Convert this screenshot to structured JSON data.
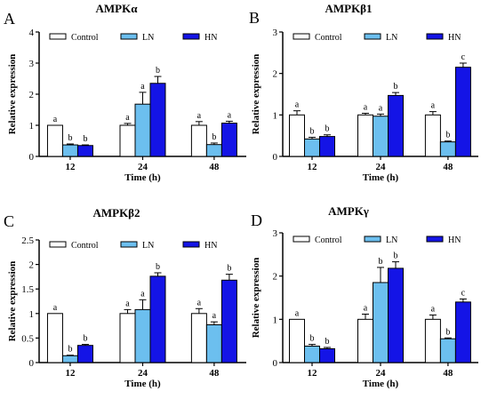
{
  "legend": [
    {
      "name": "Control",
      "color": "#ffffff"
    },
    {
      "name": "LN",
      "color": "#6cbfef"
    },
    {
      "name": "HN",
      "color": "#1414e6"
    }
  ],
  "chart_data": [
    {
      "type": "bar",
      "panel": "A",
      "title": "AMPKα",
      "xlabel": "Time (h)",
      "ylabel": "Relative expression",
      "categories": [
        "12",
        "24",
        "48"
      ],
      "ylim": [
        0,
        4
      ],
      "yticks": [
        0,
        1,
        2,
        3,
        4
      ],
      "series": [
        {
          "name": "Control",
          "values": [
            1.0,
            1.0,
            1.0
          ],
          "errors": [
            0.0,
            0.06,
            0.12
          ],
          "letters": [
            "a",
            "a",
            "a"
          ]
        },
        {
          "name": "LN",
          "values": [
            0.37,
            1.68,
            0.38
          ],
          "errors": [
            0.03,
            0.38,
            0.05
          ],
          "letters": [
            "b",
            "a",
            "b"
          ]
        },
        {
          "name": "HN",
          "values": [
            0.35,
            2.35,
            1.07
          ],
          "errors": [
            0.02,
            0.22,
            0.06
          ],
          "letters": [
            "b",
            "b",
            "a"
          ]
        }
      ]
    },
    {
      "type": "bar",
      "panel": "B",
      "title": "AMPKβ1",
      "xlabel": "Time (h)",
      "ylabel": "Relative expression",
      "categories": [
        "12",
        "24",
        "48"
      ],
      "ylim": [
        0,
        3
      ],
      "yticks": [
        0,
        1,
        2,
        3
      ],
      "series": [
        {
          "name": "Control",
          "values": [
            1.0,
            1.0,
            1.0
          ],
          "errors": [
            0.1,
            0.04,
            0.08
          ],
          "letters": [
            "a",
            "a",
            "a"
          ]
        },
        {
          "name": "LN",
          "values": [
            0.42,
            0.97,
            0.35
          ],
          "errors": [
            0.04,
            0.05,
            0.02
          ],
          "letters": [
            "b",
            "a",
            "b"
          ]
        },
        {
          "name": "HN",
          "values": [
            0.48,
            1.47,
            2.15
          ],
          "errors": [
            0.04,
            0.07,
            0.1
          ],
          "letters": [
            "b",
            "b",
            "c"
          ]
        }
      ]
    },
    {
      "type": "bar",
      "panel": "C",
      "title": "AMPKβ2",
      "xlabel": "Time (h)",
      "ylabel": "Relative expression",
      "categories": [
        "12",
        "24",
        "48"
      ],
      "ylim": [
        0,
        2.5
      ],
      "yticks": [
        0.0,
        0.5,
        1.0,
        1.5,
        2.0,
        2.5
      ],
      "series": [
        {
          "name": "Control",
          "values": [
            1.0,
            1.0,
            1.0
          ],
          "errors": [
            0.0,
            0.08,
            0.1
          ],
          "letters": [
            "a",
            "a",
            "a"
          ]
        },
        {
          "name": "LN",
          "values": [
            0.14,
            1.08,
            0.77
          ],
          "errors": [
            0.01,
            0.2,
            0.06
          ],
          "letters": [
            "b",
            "a",
            "a"
          ]
        },
        {
          "name": "HN",
          "values": [
            0.35,
            1.76,
            1.68
          ],
          "errors": [
            0.02,
            0.07,
            0.12
          ],
          "letters": [
            "b",
            "b",
            "b"
          ]
        }
      ]
    },
    {
      "type": "bar",
      "panel": "D",
      "title": "AMPKγ",
      "xlabel": "Time (h)",
      "ylabel": "Relative expression",
      "categories": [
        "12",
        "24",
        "48"
      ],
      "ylim": [
        0,
        3
      ],
      "yticks": [
        0,
        1,
        2,
        3
      ],
      "series": [
        {
          "name": "Control",
          "values": [
            1.0,
            1.0,
            1.0
          ],
          "errors": [
            0.0,
            0.12,
            0.1
          ],
          "letters": [
            "a",
            "a",
            "a"
          ]
        },
        {
          "name": "LN",
          "values": [
            0.38,
            1.85,
            0.55
          ],
          "errors": [
            0.04,
            0.35,
            0.02
          ],
          "letters": [
            "b",
            "b",
            "b"
          ]
        },
        {
          "name": "HN",
          "values": [
            0.32,
            2.18,
            1.4
          ],
          "errors": [
            0.03,
            0.15,
            0.07
          ],
          "letters": [
            "b",
            "b",
            "c"
          ]
        }
      ]
    }
  ]
}
